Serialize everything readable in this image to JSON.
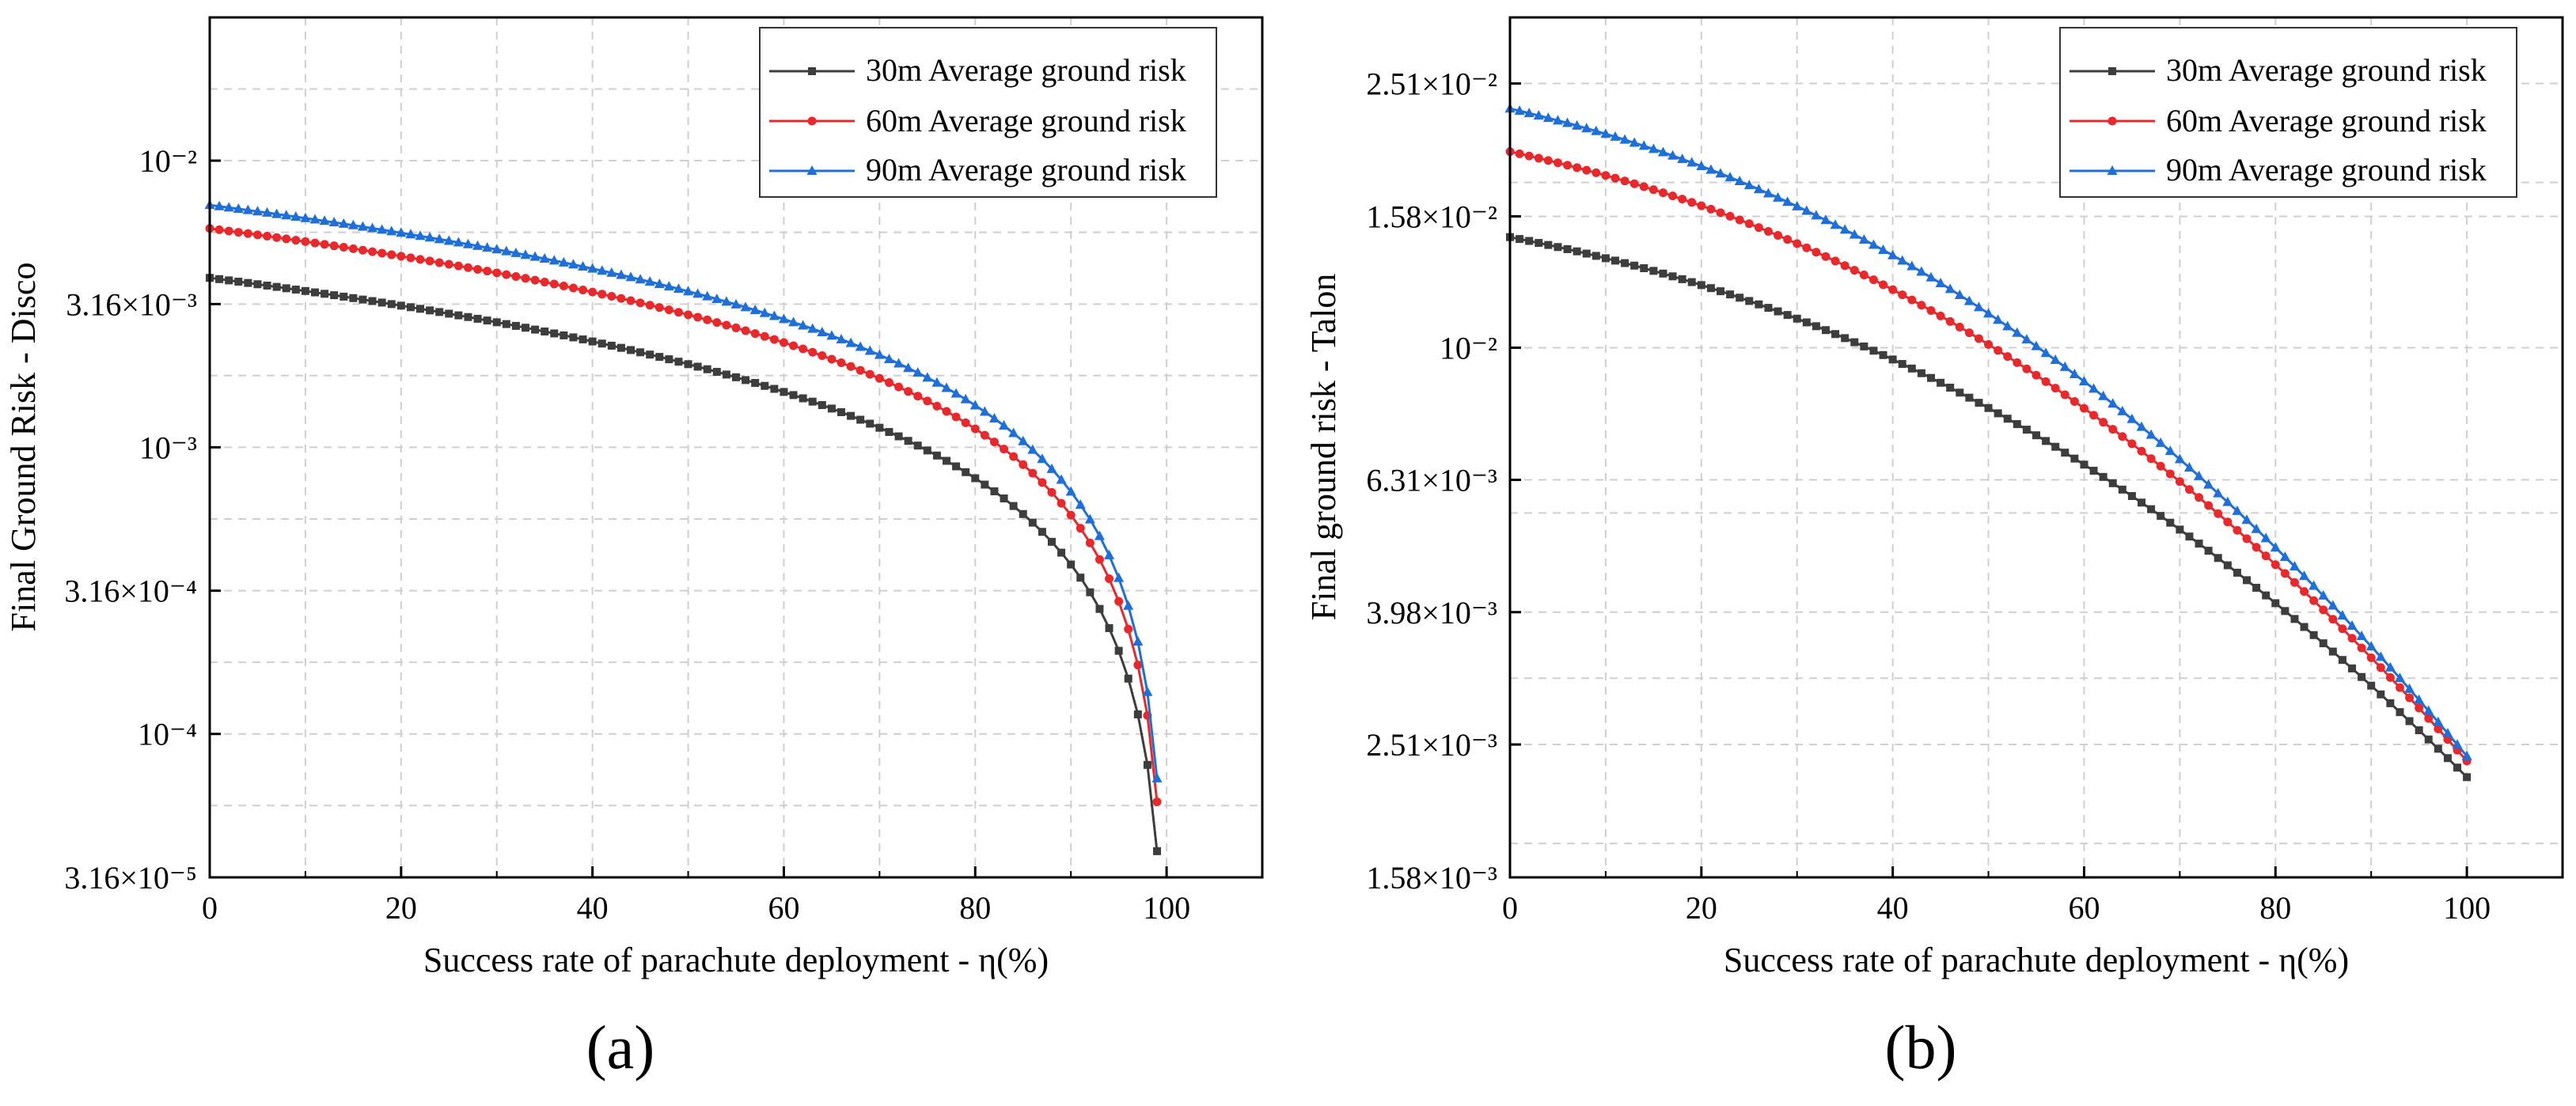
{
  "panels": [
    {
      "panel_label": "(a)",
      "legend": [
        "30m Average ground risk",
        "60m Average ground risk",
        "90m Average ground risk"
      ]
    },
    {
      "panel_label": "(b)",
      "legend": [
        "30m Average ground risk",
        "60m Average ground risk",
        "90m Average ground risk"
      ]
    }
  ],
  "colors": {
    "s30": "#3d3d3d",
    "s60": "#e8282a",
    "s90": "#1e6fd9"
  },
  "chart_data": [
    {
      "type": "line",
      "yscale": "log",
      "xlabel": "Success rate of parachute deployment - η(%)",
      "ylabel": "Final Ground Risk - Disco",
      "xlim": [
        0,
        110
      ],
      "ylim": [
        3.16e-05,
        0.0316
      ],
      "xticks": [
        0,
        20,
        40,
        60,
        80,
        100
      ],
      "xtick_labels": [
        "0",
        "20",
        "40",
        "60",
        "80",
        "100"
      ],
      "yticks": [
        3.16e-05,
        0.0001,
        0.000316,
        0.001,
        0.00316,
        0.01
      ],
      "ytick_labels": [
        "3.16×10⁻⁵",
        "10⁻⁴",
        "3.16×10⁻⁴",
        "10⁻³",
        "3.16×10⁻³",
        "10⁻²"
      ],
      "markers": [
        "square",
        "circle",
        "triangle"
      ],
      "series": [
        {
          "name": "30m Average ground risk",
          "y0": 0.0039,
          "eta_end": 99
        },
        {
          "name": "60m Average ground risk",
          "y0": 0.0058,
          "eta_end": 99
        },
        {
          "name": "90m Average ground risk",
          "y0": 0.007,
          "eta_end": 99
        }
      ]
    },
    {
      "type": "line",
      "yscale": "log",
      "xlabel": "Success rate of parachute deployment - η(%)",
      "ylabel": "Final ground risk - Talon",
      "xlim": [
        0,
        110
      ],
      "ylim": [
        0.00158,
        0.0316
      ],
      "xticks": [
        0,
        20,
        40,
        60,
        80,
        100
      ],
      "xtick_labels": [
        "0",
        "20",
        "40",
        "60",
        "80",
        "100"
      ],
      "yticks": [
        0.00158,
        0.00251,
        0.00398,
        0.00631,
        0.01,
        0.0158,
        0.0251
      ],
      "ytick_labels": [
        "1.58×10⁻³",
        "2.51×10⁻³",
        "3.98×10⁻³",
        "6.31×10⁻³",
        "10⁻²",
        "1.58×10⁻²",
        "2.51×10⁻²"
      ],
      "markers": [
        "square",
        "circle",
        "triangle"
      ],
      "series": [
        {
          "name": "30m Average ground risk",
          "y0": 0.0147,
          "y_end": 0.00224,
          "eta_end": 100
        },
        {
          "name": "60m Average ground risk",
          "y0": 0.0198,
          "y_end": 0.00237,
          "eta_end": 100
        },
        {
          "name": "90m Average ground risk",
          "y0": 0.023,
          "y_end": 0.00241,
          "eta_end": 100
        }
      ]
    }
  ]
}
